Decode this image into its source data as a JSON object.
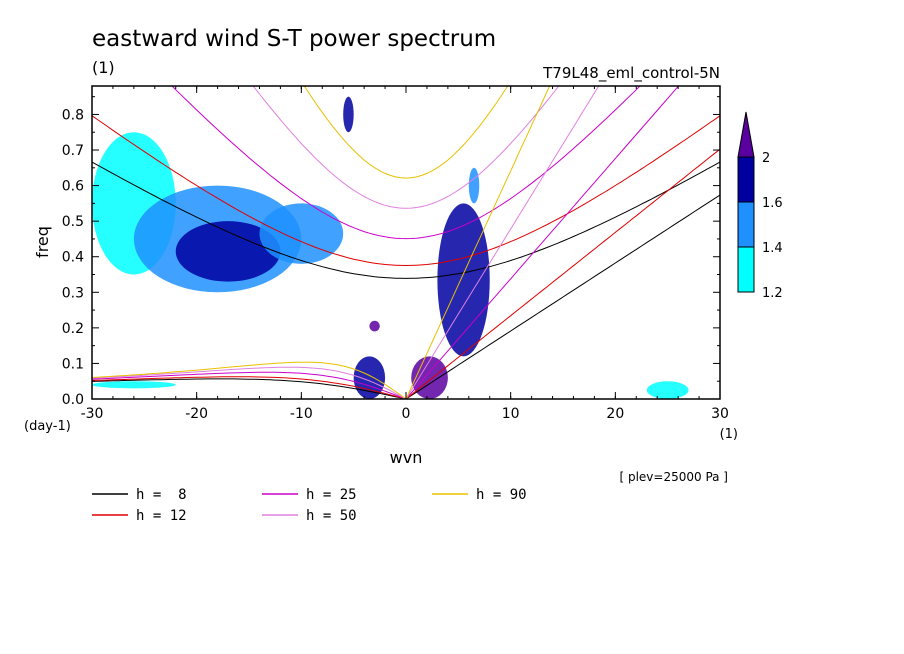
{
  "chart_data": {
    "type": "heatmap",
    "title": "eastward wind S-T power spectrum",
    "subtitle_left": "(1)",
    "subtitle_right": "T79L48_eml_control-5N",
    "xlabel": "wvn",
    "ylabel": "freq",
    "x_unit": "(1)",
    "y_unit": "(day-1)",
    "xlim": [
      -30,
      30
    ],
    "ylim": [
      0,
      0.88
    ],
    "x_ticks": [
      -30,
      -20,
      -10,
      0,
      10,
      20,
      30
    ],
    "x_tick_labels": [
      "-30",
      "-20",
      "-10",
      "0",
      "10",
      "20",
      "30"
    ],
    "y_ticks": [
      0,
      0.1,
      0.2,
      0.3,
      0.4,
      0.5,
      0.6,
      0.7,
      0.8
    ],
    "y_tick_labels": [
      "0.0",
      "0.1",
      "0.2",
      "0.3",
      "0.4",
      "0.5",
      "0.6",
      "0.7",
      "0.8"
    ],
    "annotation": "[ plev=25000 Pa ]",
    "colorbar": {
      "levels": [
        1.2,
        1.4,
        1.6,
        2
      ],
      "labels": [
        "1.2",
        "1.4",
        "1.6",
        "2"
      ],
      "colors": [
        "#00ffff",
        "#1e90ff",
        "#0000a0",
        "#5a00a0"
      ]
    },
    "series": [
      {
        "name": "h =  8",
        "h": 8,
        "color": "#000000"
      },
      {
        "name": "h = 12",
        "h": 12,
        "color": "#e00000"
      },
      {
        "name": "h = 25",
        "h": 25,
        "color": "#cc00cc"
      },
      {
        "name": "h = 50",
        "h": 50,
        "color": "#e080e0"
      },
      {
        "name": "h = 90",
        "h": 90,
        "color": "#e8c000"
      }
    ],
    "power_regions": [
      {
        "x": [
          -30,
          -22
        ],
        "y": [
          0.35,
          0.75
        ],
        "level": 1.2
      },
      {
        "x": [
          -26,
          -10
        ],
        "y": [
          0.3,
          0.6
        ],
        "level": 1.4
      },
      {
        "x": [
          -22,
          -12
        ],
        "y": [
          0.33,
          0.5
        ],
        "level": 1.6
      },
      {
        "x": [
          -14,
          -6
        ],
        "y": [
          0.38,
          0.55
        ],
        "level": 1.4
      },
      {
        "x": [
          -30,
          -22
        ],
        "y": [
          0.03,
          0.05
        ],
        "level": 1.2
      },
      {
        "x": [
          -5,
          -2
        ],
        "y": [
          0.0,
          0.12
        ],
        "level": 1.6
      },
      {
        "x": [
          -3.5,
          -2.5
        ],
        "y": [
          0.19,
          0.22
        ],
        "level": 2
      },
      {
        "x": [
          -6,
          -5
        ],
        "y": [
          0.75,
          0.85
        ],
        "level": 1.6
      },
      {
        "x": [
          0.5,
          4
        ],
        "y": [
          0.0,
          0.12
        ],
        "level": 2
      },
      {
        "x": [
          3,
          8
        ],
        "y": [
          0.12,
          0.55
        ],
        "level": 1.6
      },
      {
        "x": [
          6,
          7
        ],
        "y": [
          0.55,
          0.65
        ],
        "level": 1.4
      },
      {
        "x": [
          23,
          27
        ],
        "y": [
          0.0,
          0.05
        ],
        "level": 1.2
      }
    ]
  }
}
